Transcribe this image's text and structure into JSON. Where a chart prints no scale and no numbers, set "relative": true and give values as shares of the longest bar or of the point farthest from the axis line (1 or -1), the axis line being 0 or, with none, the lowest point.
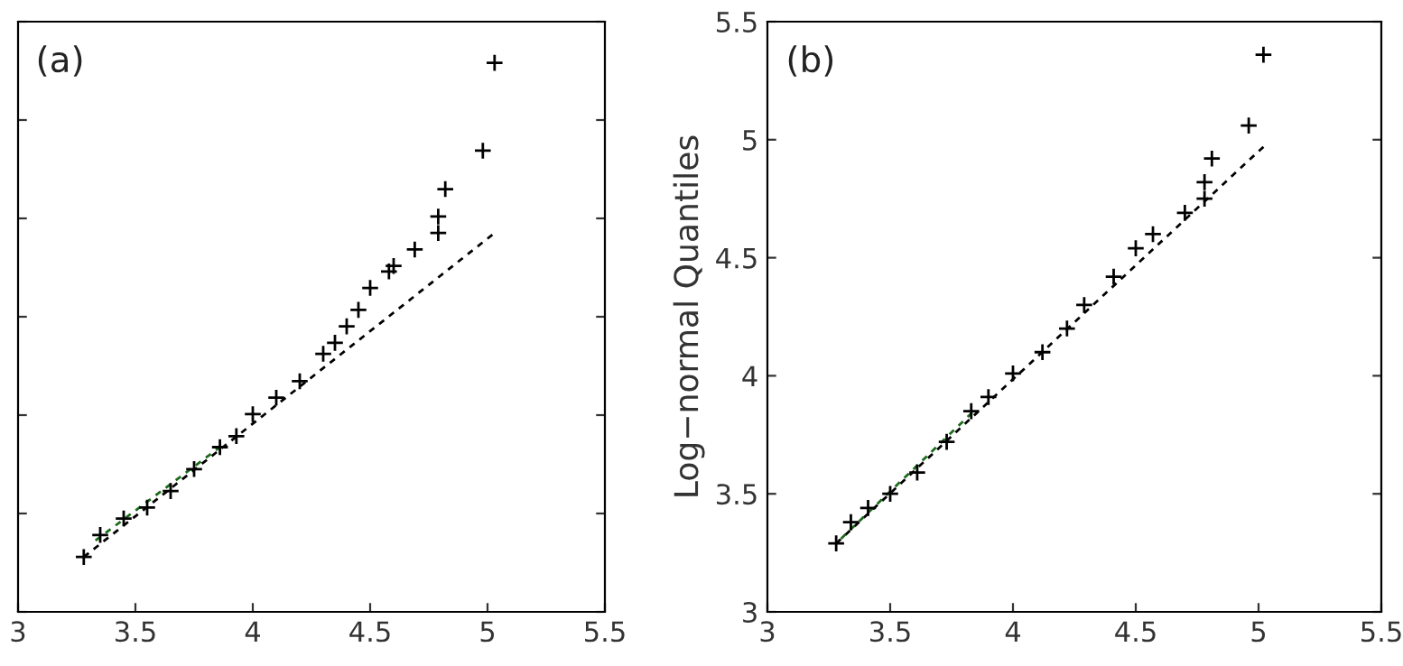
{
  "chart_data": [
    {
      "type": "scatter",
      "relative": true,
      "annotations": [
        "(a)"
      ],
      "xlim": [
        3,
        5.5
      ],
      "xticks": [
        3,
        3.5,
        4,
        4.5,
        5,
        5.5
      ],
      "series": [
        {
          "marker": "cross",
          "color": "#000000",
          "x": [
            3.28,
            3.35,
            3.45,
            3.55,
            3.65,
            3.75,
            3.86,
            3.93,
            4.0,
            4.1,
            4.2,
            4.3,
            4.35,
            4.4,
            4.45,
            4.5,
            4.58,
            4.6,
            4.69,
            4.79,
            4.79,
            4.82,
            4.98,
            5.03
          ],
          "values": [
            0.1,
            0.14,
            0.17,
            0.19,
            0.22,
            0.26,
            0.3,
            0.32,
            0.36,
            0.39,
            0.42,
            0.47,
            0.49,
            0.52,
            0.55,
            0.59,
            0.62,
            0.63,
            0.66,
            0.69,
            0.72,
            0.77,
            0.84,
            1.0
          ]
        },
        {
          "type": "line",
          "line_style": "dashed",
          "color": "#000000",
          "x": [
            3.28,
            5.03
          ],
          "values": [
            0.1,
            0.69
          ]
        },
        {
          "type": "line",
          "line_style": "dashed",
          "color": "#1a6b1a",
          "x": [
            3.33,
            3.86
          ],
          "values": [
            0.13,
            0.3
          ]
        }
      ]
    },
    {
      "type": "scatter",
      "ylabel": "Log−normal Quantiles",
      "annotations": [
        "(b)"
      ],
      "xlim": [
        3,
        5.5
      ],
      "xticks": [
        3,
        3.5,
        4,
        4.5,
        5,
        5.5
      ],
      "ylim": [
        3,
        5.5
      ],
      "yticks": [
        3,
        3.5,
        4,
        4.5,
        5,
        5.5
      ],
      "series": [
        {
          "marker": "cross",
          "color": "#000000",
          "x": [
            3.28,
            3.34,
            3.41,
            3.5,
            3.61,
            3.73,
            3.83,
            3.9,
            4.0,
            4.12,
            4.22,
            4.29,
            4.41,
            4.5,
            4.57,
            4.7,
            4.78,
            4.78,
            4.81,
            4.96,
            5.02
          ],
          "values": [
            3.29,
            3.38,
            3.44,
            3.5,
            3.59,
            3.72,
            3.85,
            3.91,
            4.01,
            4.1,
            4.2,
            4.3,
            4.42,
            4.54,
            4.6,
            4.69,
            4.75,
            4.82,
            4.92,
            5.06,
            5.36
          ]
        },
        {
          "type": "line",
          "line_style": "dashed",
          "color": "#000000",
          "x": [
            3.28,
            5.02
          ],
          "values": [
            3.29,
            4.97
          ]
        },
        {
          "type": "line",
          "line_style": "dashed",
          "color": "#1a6b1a",
          "x": [
            3.3,
            3.85
          ],
          "values": [
            3.31,
            3.86
          ]
        }
      ]
    }
  ]
}
